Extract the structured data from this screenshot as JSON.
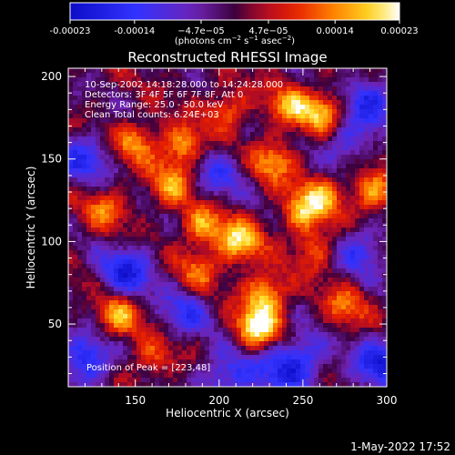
{
  "colorbar": {
    "tick_labels": [
      "-0.00023",
      "-0.00014",
      "−4.7e−05",
      "4.7e−05",
      "0.00014",
      "0.00023"
    ],
    "tick_values": [
      -0.00023,
      -0.00014,
      -4.7e-05,
      4.7e-05,
      0.00014,
      0.00023
    ],
    "range": [
      -0.00023,
      0.00023
    ],
    "units_text": "(photons cm",
    "units_exp1": "−2",
    "units_mid": " s",
    "units_exp2": "−1",
    "units_end": " asec",
    "units_exp3": "−2",
    "units_close": ")",
    "colors": [
      "#0c0cc8",
      "#2c2cff",
      "#6a1aa8",
      "#a01060",
      "#c81010",
      "#ff3200",
      "#ff9b00",
      "#ffe030",
      "#ffffff"
    ]
  },
  "chart_data": {
    "type": "heatmap",
    "title": "Reconstructed RHESSI Image",
    "xlabel": "Heliocentric X (arcsec)",
    "ylabel": "Heliocentric Y (arcsec)",
    "xlim": [
      110,
      300
    ],
    "ylim": [
      12,
      205
    ],
    "x_ticks": [
      150,
      200,
      250,
      300
    ],
    "y_ticks": [
      50,
      100,
      150,
      200
    ],
    "x_tick_labels": [
      "150",
      "200",
      "250",
      "300"
    ],
    "y_tick_labels": [
      "50",
      "100",
      "150",
      "200"
    ],
    "colorscale": "RHESSI red-temperature (blue negative, black zero, red-yellow-white positive)",
    "value_range": [
      -0.00023,
      0.00023
    ],
    "peak": [
      223,
      48
    ],
    "hotspots": [
      {
        "x": 223,
        "y": 48,
        "value": 0.00023
      },
      {
        "x": 228,
        "y": 68,
        "value": 0.00018
      },
      {
        "x": 212,
        "y": 100,
        "value": 0.0002
      },
      {
        "x": 190,
        "y": 110,
        "value": 0.00015
      },
      {
        "x": 172,
        "y": 135,
        "value": 0.00014
      },
      {
        "x": 178,
        "y": 158,
        "value": 0.00016
      },
      {
        "x": 150,
        "y": 160,
        "value": 0.00014
      },
      {
        "x": 250,
        "y": 118,
        "value": 0.00016
      },
      {
        "x": 262,
        "y": 128,
        "value": 0.00014
      },
      {
        "x": 232,
        "y": 148,
        "value": 0.00015
      },
      {
        "x": 262,
        "y": 178,
        "value": 0.00018
      },
      {
        "x": 242,
        "y": 182,
        "value": 0.00015
      },
      {
        "x": 292,
        "y": 130,
        "value": 0.00016
      },
      {
        "x": 140,
        "y": 55,
        "value": 0.00016
      },
      {
        "x": 275,
        "y": 60,
        "value": 0.00012
      },
      {
        "x": 132,
        "y": 120,
        "value": 0.00012
      },
      {
        "x": 188,
        "y": 82,
        "value": 0.00012
      },
      {
        "x": 258,
        "y": 95,
        "value": 0.00011
      },
      {
        "x": 205,
        "y": 180,
        "value": 0.00012
      },
      {
        "x": 160,
        "y": 30,
        "value": 0.0001
      }
    ],
    "coldspots": [
      {
        "x": 120,
        "y": 28,
        "value": -0.00018
      },
      {
        "x": 145,
        "y": 82,
        "value": -0.00018
      },
      {
        "x": 205,
        "y": 18,
        "value": -0.00015
      },
      {
        "x": 250,
        "y": 30,
        "value": -0.00014
      },
      {
        "x": 290,
        "y": 185,
        "value": -0.00016
      },
      {
        "x": 285,
        "y": 95,
        "value": -0.00013
      },
      {
        "x": 295,
        "y": 25,
        "value": -0.00018
      },
      {
        "x": 180,
        "y": 58,
        "value": -0.00012
      },
      {
        "x": 120,
        "y": 150,
        "value": -0.00014
      },
      {
        "x": 200,
        "y": 140,
        "value": -0.00011
      },
      {
        "x": 235,
        "y": 20,
        "value": -0.00012
      },
      {
        "x": 275,
        "y": 160,
        "value": -0.00011
      }
    ],
    "info_lines": [
      "10-Sep-2002 14:18:28.000 to 14:24:28.000",
      "Detectors: 3F 4F 5F 6F 7F 8F, Att 0",
      "Energy Range: 25.0 - 50.0 keV",
      "Clean     Total counts: 6.24E+03"
    ],
    "peak_label": "Position of Peak = [223,48]"
  },
  "footer_timestamp": "1-May-2022 17:52"
}
